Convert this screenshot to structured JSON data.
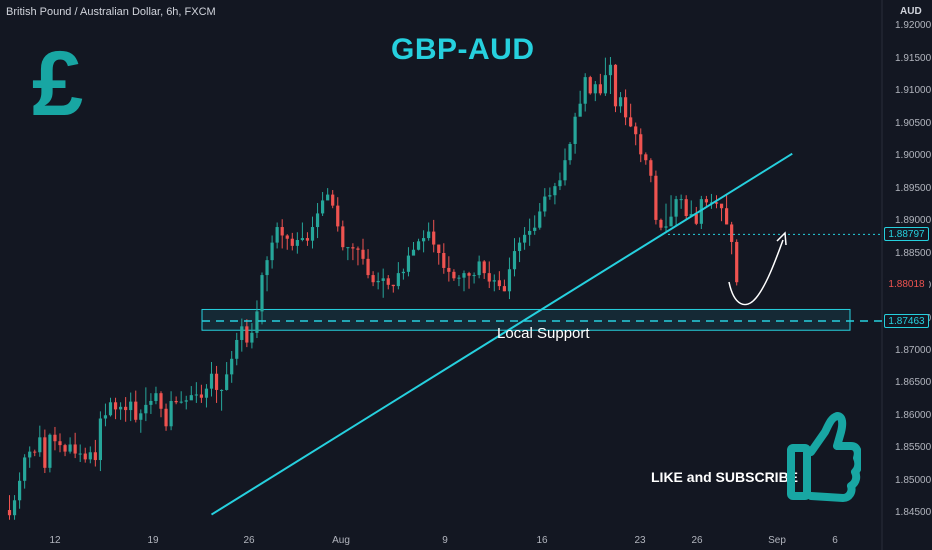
{
  "header": {
    "symbol_line": "British Pound / Australian Dollar, 6h, FXCM",
    "title": "GBP-AUD",
    "currency_glyph": "£"
  },
  "annotations": {
    "support_label": "Local Support",
    "cta": "LIKE and SUBSCRIBE"
  },
  "colors": {
    "background": "#131722",
    "bull": "#26a69a",
    "bear": "#ef5350",
    "accent": "#26d0de",
    "brand": "#18a6a3"
  },
  "chart_data": {
    "type": "candlestick",
    "title": "GBP-AUD",
    "y_axis_unit": "AUD",
    "y_ticks": [
      "1.92000",
      "1.91500",
      "1.91000",
      "1.90500",
      "1.90000",
      "1.89500",
      "1.89000",
      "1.88500",
      "1.88000",
      "1.87500",
      "1.87000",
      "1.86500",
      "1.86000",
      "1.85500",
      "1.85000",
      "1.84500"
    ],
    "x_ticks": [
      "12",
      "19",
      "26",
      "Aug",
      "9",
      "16",
      "23",
      "26",
      "Sep",
      "6"
    ],
    "ylim": [
      1.8435,
      1.921
    ],
    "price_markers": [
      {
        "label": "1.88797",
        "value": 1.88797,
        "style": "dotted"
      },
      {
        "label": "1.88018",
        "value": 1.88018,
        "style": "current"
      },
      {
        "label": "1.87463",
        "value": 1.87463,
        "style": "dashed"
      }
    ],
    "support_zone": [
      1.8732,
      1.8764
    ],
    "trendline": [
      {
        "x": 40,
        "y": 1.8448
      },
      {
        "x": 155,
        "y": 1.9004
      }
    ],
    "candles": [
      [
        0,
        1.8455,
        1.8447,
        1.8478,
        1.844
      ],
      [
        1,
        1.8447,
        1.847,
        1.8478,
        1.844
      ],
      [
        2,
        1.847,
        1.85,
        1.8513,
        1.8457
      ],
      [
        3,
        1.85,
        1.8536,
        1.8541,
        1.8488
      ],
      [
        4,
        1.8536,
        1.8545,
        1.8553,
        1.852
      ],
      [
        5,
        1.8545,
        1.8544,
        1.8548,
        1.8538
      ],
      [
        6,
        1.8544,
        1.8567,
        1.8585,
        1.8537
      ],
      [
        7,
        1.8567,
        1.852,
        1.8579,
        1.8512
      ],
      [
        8,
        1.852,
        1.8571,
        1.8573,
        1.8513
      ],
      [
        9,
        1.8571,
        1.8561,
        1.8583,
        1.8547
      ],
      [
        10,
        1.8561,
        1.8555,
        1.8573,
        1.8544
      ],
      [
        11,
        1.8555,
        1.8545,
        1.8557,
        1.8538
      ],
      [
        12,
        1.8545,
        1.8556,
        1.8567,
        1.8542
      ],
      [
        13,
        1.8556,
        1.8542,
        1.8574,
        1.8535
      ],
      [
        14,
        1.8542,
        1.8542,
        1.8556,
        1.8529
      ],
      [
        15,
        1.8542,
        1.8533,
        1.8551,
        1.8528
      ],
      [
        16,
        1.8533,
        1.8544,
        1.8553,
        1.8527
      ],
      [
        17,
        1.8544,
        1.8532,
        1.8563,
        1.8522
      ],
      [
        18,
        1.8532,
        1.8596,
        1.8607,
        1.8515
      ],
      [
        19,
        1.8596,
        1.8601,
        1.8619,
        1.8584
      ],
      [
        20,
        1.8601,
        1.8621,
        1.8628,
        1.8599
      ],
      [
        21,
        1.8621,
        1.861,
        1.8628,
        1.8595
      ],
      [
        22,
        1.861,
        1.8614,
        1.8621,
        1.8594
      ],
      [
        23,
        1.8614,
        1.8609,
        1.8629,
        1.8591
      ],
      [
        24,
        1.8609,
        1.8622,
        1.8636,
        1.8592
      ],
      [
        25,
        1.8622,
        1.8594,
        1.8639,
        1.859
      ],
      [
        26,
        1.8594,
        1.8604,
        1.861,
        1.8574
      ],
      [
        27,
        1.8604,
        1.8617,
        1.8644,
        1.8592
      ],
      [
        28,
        1.8617,
        1.8623,
        1.8635,
        1.8603
      ],
      [
        29,
        1.8623,
        1.8635,
        1.8645,
        1.8618
      ],
      [
        30,
        1.8635,
        1.8611,
        1.8638,
        1.8598
      ],
      [
        31,
        1.8611,
        1.8584,
        1.8619,
        1.8577
      ],
      [
        32,
        1.8584,
        1.8623,
        1.8638,
        1.8578
      ],
      [
        33,
        1.8623,
        1.8621,
        1.863,
        1.8618
      ],
      [
        34,
        1.8621,
        1.8622,
        1.8638,
        1.8619
      ],
      [
        35,
        1.8622,
        1.8624,
        1.8631,
        1.861
      ],
      [
        36,
        1.8624,
        1.8632,
        1.8646,
        1.8628
      ],
      [
        37,
        1.8632,
        1.8633,
        1.8652,
        1.862
      ],
      [
        38,
        1.8633,
        1.8628,
        1.8648,
        1.862
      ],
      [
        39,
        1.8628,
        1.8642,
        1.8649,
        1.8613
      ],
      [
        40,
        1.8642,
        1.8665,
        1.8683,
        1.863
      ],
      [
        41,
        1.8665,
        1.864,
        1.8677,
        1.862
      ],
      [
        42,
        1.864,
        1.864,
        1.8641,
        1.8608
      ],
      [
        43,
        1.864,
        1.8664,
        1.8683,
        1.8639
      ],
      [
        44,
        1.8664,
        1.8688,
        1.87,
        1.8651
      ],
      [
        45,
        1.8688,
        1.8717,
        1.8728,
        1.8678
      ],
      [
        46,
        1.8717,
        1.8738,
        1.875,
        1.8699
      ],
      [
        47,
        1.8738,
        1.8713,
        1.8749,
        1.8706
      ],
      [
        48,
        1.8713,
        1.8728,
        1.8743,
        1.8704
      ],
      [
        49,
        1.8728,
        1.8761,
        1.8778,
        1.872
      ],
      [
        50,
        1.8761,
        1.8817,
        1.8821,
        1.8741
      ],
      [
        51,
        1.8817,
        1.884,
        1.8846,
        1.8792
      ],
      [
        52,
        1.884,
        1.8867,
        1.8878,
        1.8827
      ],
      [
        53,
        1.8867,
        1.8891,
        1.8898,
        1.8858
      ],
      [
        54,
        1.8891,
        1.8878,
        1.8903,
        1.8858
      ],
      [
        55,
        1.8878,
        1.8873,
        1.888,
        1.8856
      ],
      [
        56,
        1.8873,
        1.8862,
        1.8882,
        1.8855
      ],
      [
        57,
        1.8862,
        1.8871,
        1.8883,
        1.885
      ],
      [
        58,
        1.8871,
        1.8874,
        1.8898,
        1.8869
      ],
      [
        59,
        1.8874,
        1.887,
        1.8883,
        1.8862
      ],
      [
        60,
        1.887,
        1.8891,
        1.8907,
        1.8858
      ],
      [
        61,
        1.8891,
        1.8912,
        1.8928,
        1.8874
      ],
      [
        62,
        1.8912,
        1.8932,
        1.8945,
        1.8908
      ],
      [
        63,
        1.8932,
        1.8941,
        1.8951,
        1.8935
      ],
      [
        64,
        1.8941,
        1.8924,
        1.8948,
        1.892
      ],
      [
        65,
        1.8924,
        1.8892,
        1.8937,
        1.8884
      ],
      [
        66,
        1.8892,
        1.886,
        1.8901,
        1.8855
      ],
      [
        67,
        1.886,
        1.886,
        1.886,
        1.884
      ],
      [
        68,
        1.886,
        1.8858,
        1.8866,
        1.884
      ],
      [
        69,
        1.8858,
        1.8856,
        1.8861,
        1.8832
      ],
      [
        70,
        1.8856,
        1.8842,
        1.8873,
        1.8833
      ],
      [
        71,
        1.8842,
        1.8817,
        1.8857,
        1.8812
      ],
      [
        72,
        1.8817,
        1.8806,
        1.8823,
        1.88
      ],
      [
        73,
        1.8806,
        1.8808,
        1.8821,
        1.8795
      ],
      [
        74,
        1.8808,
        1.8812,
        1.8827,
        1.8782
      ],
      [
        75,
        1.8812,
        1.8802,
        1.8817,
        1.8795
      ],
      [
        76,
        1.8802,
        1.88,
        1.8802,
        1.879
      ],
      [
        77,
        1.88,
        1.882,
        1.8837,
        1.8795
      ],
      [
        78,
        1.882,
        1.8822,
        1.8827,
        1.881
      ],
      [
        79,
        1.8822,
        1.8847,
        1.886,
        1.8815
      ],
      [
        80,
        1.8847,
        1.8856,
        1.8868,
        1.8852
      ],
      [
        81,
        1.8856,
        1.8869,
        1.8873,
        1.8855
      ],
      [
        82,
        1.8869,
        1.8874,
        1.8886,
        1.8852
      ],
      [
        83,
        1.8874,
        1.8884,
        1.8898,
        1.887
      ],
      [
        84,
        1.8884,
        1.8864,
        1.8902,
        1.8852
      ],
      [
        85,
        1.8864,
        1.8851,
        1.8864,
        1.8833
      ],
      [
        86,
        1.8851,
        1.8828,
        1.8866,
        1.8819
      ],
      [
        87,
        1.8828,
        1.8822,
        1.8846,
        1.8807
      ],
      [
        88,
        1.8822,
        1.8812,
        1.8826,
        1.8808
      ],
      [
        89,
        1.8812,
        1.8813,
        1.8817,
        1.88
      ],
      [
        90,
        1.8813,
        1.882,
        1.8824,
        1.8792
      ],
      [
        91,
        1.882,
        1.8816,
        1.8822,
        1.8796
      ],
      [
        92,
        1.8816,
        1.8817,
        1.8821,
        1.8804
      ],
      [
        93,
        1.8817,
        1.8838,
        1.8847,
        1.8812
      ],
      [
        94,
        1.8838,
        1.882,
        1.884,
        1.8811
      ],
      [
        95,
        1.882,
        1.8807,
        1.8838,
        1.8797
      ],
      [
        96,
        1.8807,
        1.8809,
        1.8818,
        1.8792
      ],
      [
        97,
        1.8809,
        1.88,
        1.8823,
        1.8794
      ],
      [
        98,
        1.88,
        1.8792,
        1.881,
        1.8792
      ],
      [
        99,
        1.8792,
        1.8826,
        1.8844,
        1.878
      ],
      [
        100,
        1.8826,
        1.8854,
        1.8874,
        1.8815
      ],
      [
        101,
        1.8854,
        1.8867,
        1.8875,
        1.8837
      ],
      [
        102,
        1.8867,
        1.8879,
        1.8891,
        1.8856
      ],
      [
        103,
        1.8879,
        1.8885,
        1.8904,
        1.8862
      ],
      [
        104,
        1.8885,
        1.889,
        1.8909,
        1.8879
      ],
      [
        105,
        1.889,
        1.8915,
        1.8928,
        1.8887
      ],
      [
        106,
        1.8915,
        1.8938,
        1.8951,
        1.8907
      ],
      [
        107,
        1.8938,
        1.894,
        1.8952,
        1.8933
      ],
      [
        108,
        1.894,
        1.8954,
        1.8959,
        1.8926
      ],
      [
        109,
        1.8954,
        1.8963,
        1.8975,
        1.8948
      ],
      [
        110,
        1.8963,
        1.8994,
        1.9012,
        1.8955
      ],
      [
        111,
        1.8994,
        1.9019,
        1.9022,
        1.8987
      ],
      [
        112,
        1.9019,
        1.9061,
        1.9067,
        1.9004
      ],
      [
        113,
        1.9061,
        1.9081,
        1.9101,
        1.9071
      ],
      [
        114,
        1.9081,
        1.9122,
        1.9128,
        1.9069
      ],
      [
        115,
        1.9122,
        1.9097,
        1.9124,
        1.9095
      ],
      [
        116,
        1.9097,
        1.9111,
        1.9116,
        1.9085
      ],
      [
        117,
        1.9111,
        1.9097,
        1.9127,
        1.9094
      ],
      [
        118,
        1.9097,
        1.9125,
        1.9152,
        1.9093
      ],
      [
        119,
        1.9125,
        1.9141,
        1.9153,
        1.9096
      ],
      [
        120,
        1.9141,
        1.9077,
        1.9142,
        1.9068
      ],
      [
        121,
        1.9077,
        1.9091,
        1.9099,
        1.9067
      ],
      [
        122,
        1.9091,
        1.906,
        1.9103,
        1.9048
      ],
      [
        123,
        1.906,
        1.9046,
        1.9081,
        1.9045
      ],
      [
        124,
        1.9046,
        1.9034,
        1.9052,
        1.9017
      ],
      [
        125,
        1.9034,
        1.9003,
        1.9043,
        1.8991
      ],
      [
        126,
        1.9003,
        1.8994,
        1.9006,
        1.8987
      ],
      [
        127,
        1.8994,
        1.897,
        1.8997,
        1.896
      ],
      [
        128,
        1.897,
        1.8902,
        1.8978,
        1.8895
      ],
      [
        129,
        1.8902,
        1.889,
        1.8904,
        1.8886
      ],
      [
        130,
        1.889,
        1.8892,
        1.8927,
        1.8883
      ],
      [
        131,
        1.8892,
        1.8907,
        1.894,
        1.8897
      ],
      [
        132,
        1.8907,
        1.8934,
        1.8939,
        1.8894
      ],
      [
        133,
        1.8934,
        1.8934,
        1.8941,
        1.8919
      ],
      [
        134,
        1.8934,
        1.8908,
        1.894,
        1.8902
      ],
      [
        135,
        1.8908,
        1.8911,
        1.8932,
        1.8907
      ],
      [
        136,
        1.8911,
        1.8896,
        1.8922,
        1.8894
      ],
      [
        137,
        1.8896,
        1.8934,
        1.8939,
        1.8888
      ],
      [
        138,
        1.8934,
        1.8929,
        1.8939,
        1.8922
      ],
      [
        139,
        1.8929,
        1.8929,
        1.8942,
        1.8919
      ],
      [
        140,
        1.8929,
        1.8927,
        1.894,
        1.892
      ],
      [
        141,
        1.8927,
        1.892,
        1.8922,
        1.89
      ],
      [
        142,
        1.892,
        1.8895,
        1.8941,
        1.8895
      ],
      [
        143,
        1.8895,
        1.8868,
        1.8899,
        1.8849
      ],
      [
        144,
        1.8868,
        1.8806,
        1.8872,
        1.8801
      ]
    ]
  }
}
